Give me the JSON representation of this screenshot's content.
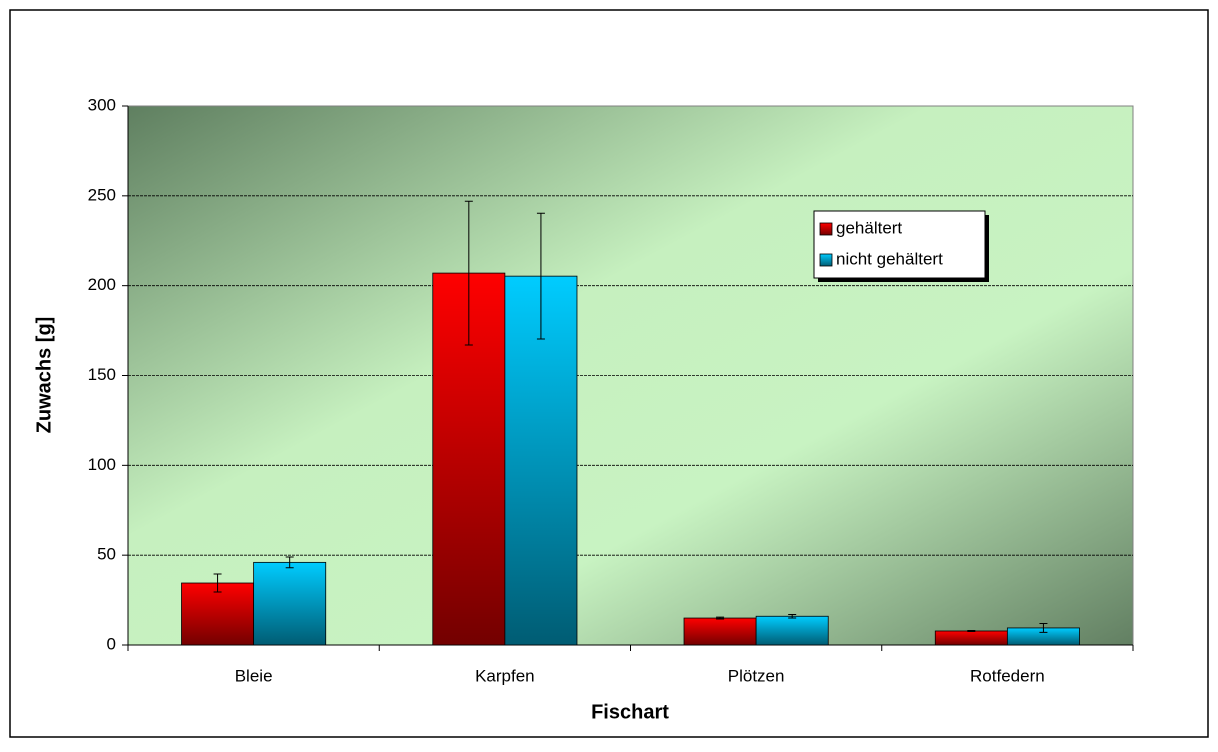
{
  "chart_data": {
    "type": "bar",
    "x_label": "Fischart",
    "y_label": "Zuwachs [g]",
    "categories": [
      "Bleie",
      "Karpfen",
      "Plötzen",
      "Rotfedern"
    ],
    "series": [
      {
        "name": "gehältert",
        "color": "#ff0000",
        "values": [
          34.5,
          207,
          15,
          7.8
        ],
        "errors": [
          5,
          40,
          0.5,
          0.3
        ]
      },
      {
        "name": "nicht gehältert",
        "color": "#00ccff",
        "values": [
          46,
          205.3,
          16,
          9.5
        ],
        "errors": [
          3,
          35,
          1,
          2.5
        ]
      }
    ],
    "ylim": [
      0,
      300
    ],
    "yticks": [
      0,
      50,
      100,
      150,
      200,
      250,
      300
    ],
    "grid": true
  }
}
